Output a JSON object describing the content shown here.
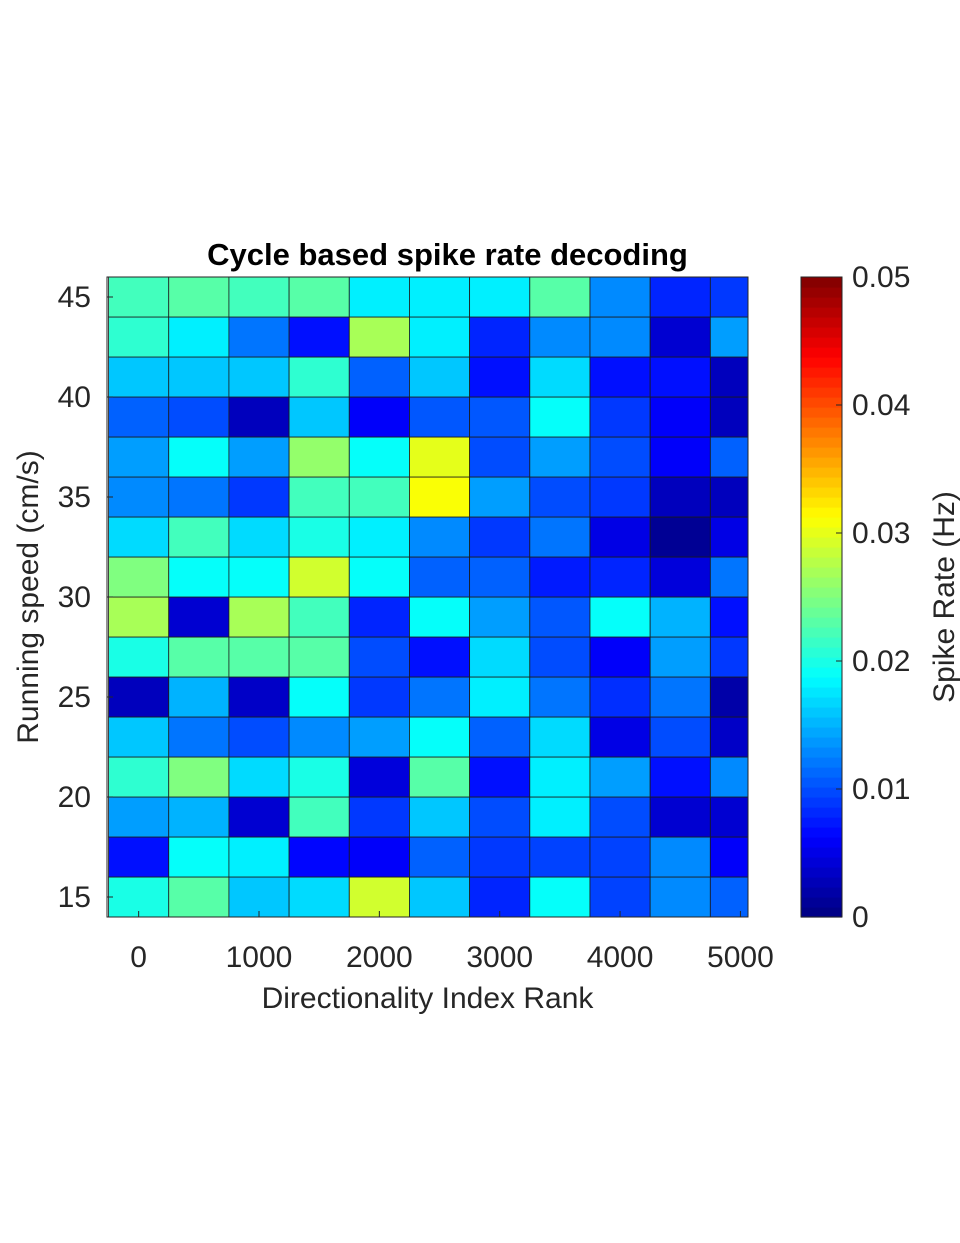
{
  "chart_data": {
    "type": "heatmap",
    "title": "Cycle based spike rate decoding",
    "xlabel": "Directionality Index Rank",
    "ylabel": "Running speed (cm/s)",
    "colorbar_label": "Spike Rate (Hz)",
    "colormap": "jet",
    "clim": [
      0,
      0.05
    ],
    "xlim": [
      -263,
      5063
    ],
    "ylim": [
      14,
      46
    ],
    "x_centers": [
      0,
      500,
      1000,
      1500,
      2000,
      2500,
      3000,
      3500,
      4000,
      4500,
      5000
    ],
    "y_centers": [
      15,
      17,
      19,
      21,
      23,
      25,
      27,
      29,
      31,
      33,
      35,
      37,
      39,
      41,
      43,
      45
    ],
    "cell_width": 500,
    "cell_height": 2,
    "x_ticks": [
      0,
      1000,
      2000,
      3000,
      4000,
      5000
    ],
    "x_tick_labels": [
      "0",
      "1000",
      "2000",
      "3000",
      "4000",
      "5000"
    ],
    "y_ticks": [
      15,
      20,
      25,
      30,
      35,
      40,
      45
    ],
    "y_tick_labels": [
      "15",
      "20",
      "25",
      "30",
      "35",
      "40",
      "45"
    ],
    "cb_ticks": [
      0,
      0.01,
      0.02,
      0.03,
      0.04,
      0.05
    ],
    "cb_tick_labels": [
      "0",
      "0.01",
      "0.02",
      "0.03",
      "0.04",
      "0.05"
    ],
    "values": [
      [
        0.02,
        0.023,
        0.016,
        0.017,
        0.029,
        0.016,
        0.008,
        0.019,
        0.0095,
        0.013,
        0.011
      ],
      [
        0.007,
        0.019,
        0.018,
        0.0065,
        0.006,
        0.011,
        0.009,
        0.0095,
        0.0095,
        0.013,
        0.006
      ],
      [
        0.014,
        0.015,
        0.004,
        0.022,
        0.009,
        0.016,
        0.01,
        0.018,
        0.01,
        0.004,
        0.004
      ],
      [
        0.021,
        0.025,
        0.017,
        0.02,
        0.0045,
        0.023,
        0.007,
        0.018,
        0.014,
        0.007,
        0.013
      ],
      [
        0.016,
        0.012,
        0.01,
        0.013,
        0.014,
        0.019,
        0.011,
        0.017,
        0.005,
        0.01,
        0.0035
      ],
      [
        0.003,
        0.015,
        0.0035,
        0.019,
        0.009,
        0.012,
        0.018,
        0.012,
        0.0085,
        0.012,
        0.002
      ],
      [
        0.02,
        0.023,
        0.023,
        0.023,
        0.01,
        0.007,
        0.017,
        0.01,
        0.006,
        0.014,
        0.009
      ],
      [
        0.027,
        0.004,
        0.027,
        0.022,
        0.008,
        0.019,
        0.014,
        0.0105,
        0.019,
        0.015,
        0.007
      ],
      [
        0.025,
        0.019,
        0.019,
        0.029,
        0.019,
        0.011,
        0.011,
        0.0075,
        0.008,
        0.0045,
        0.012
      ],
      [
        0.017,
        0.022,
        0.017,
        0.02,
        0.018,
        0.013,
        0.009,
        0.012,
        0.005,
        0.001,
        0.005
      ],
      [
        0.013,
        0.012,
        0.009,
        0.022,
        0.022,
        0.031,
        0.014,
        0.01,
        0.009,
        0.003,
        0.003
      ],
      [
        0.014,
        0.019,
        0.014,
        0.026,
        0.019,
        0.03,
        0.01,
        0.014,
        0.01,
        0.006,
        0.011
      ],
      [
        0.011,
        0.01,
        0.003,
        0.016,
        0.006,
        0.0105,
        0.0105,
        0.019,
        0.009,
        0.006,
        0.003
      ],
      [
        0.016,
        0.016,
        0.016,
        0.021,
        0.011,
        0.016,
        0.007,
        0.017,
        0.007,
        0.007,
        0.003
      ],
      [
        0.021,
        0.018,
        0.012,
        0.007,
        0.027,
        0.018,
        0.008,
        0.013,
        0.013,
        0.004,
        0.014
      ],
      [
        0.022,
        0.023,
        0.022,
        0.023,
        0.018,
        0.018,
        0.018,
        0.023,
        0.013,
        0.008,
        0.009
      ]
    ]
  }
}
